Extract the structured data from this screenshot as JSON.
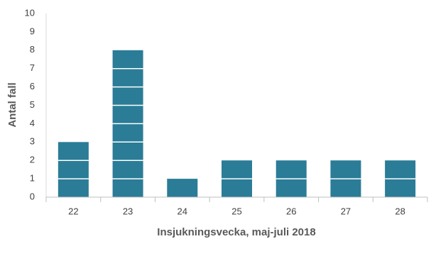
{
  "chart_data": {
    "type": "bar",
    "x_label": "Insjukningsvecka, maj-juli 2018",
    "y_label": "Antal fall",
    "categories": [
      "22",
      "23",
      "24",
      "25",
      "26",
      "27",
      "28"
    ],
    "values": [
      3,
      8,
      1,
      2,
      2,
      2,
      2
    ],
    "color": "#2b7c96",
    "ylim": [
      0,
      10
    ],
    "yticks": [
      0,
      1,
      2,
      3,
      4,
      5,
      6,
      7,
      8,
      9,
      10
    ],
    "grid": false
  }
}
